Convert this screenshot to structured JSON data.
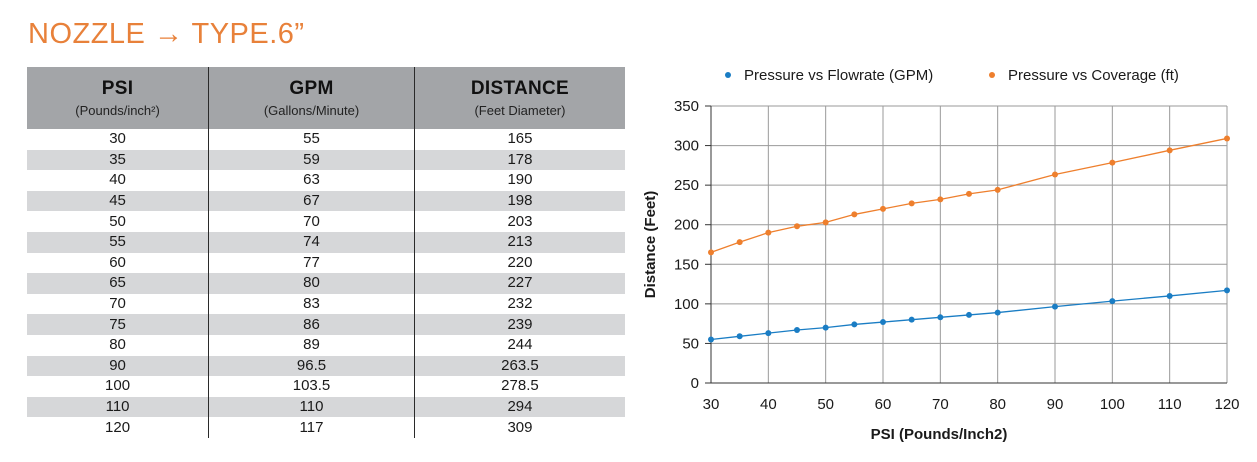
{
  "title": "NOZZLE → TYPE.6”",
  "table": {
    "headers": [
      {
        "main": "PSI",
        "sub": "(Pounds/inch²)"
      },
      {
        "main": "GPM",
        "sub": "(Gallons/Minute)"
      },
      {
        "main": "DISTANCE",
        "sub": "(Feet Diameter)"
      }
    ],
    "rows": [
      [
        "30",
        "55",
        "165"
      ],
      [
        "35",
        "59",
        "178"
      ],
      [
        "40",
        "63",
        "190"
      ],
      [
        "45",
        "67",
        "198"
      ],
      [
        "50",
        "70",
        "203"
      ],
      [
        "55",
        "74",
        "213"
      ],
      [
        "60",
        "77",
        "220"
      ],
      [
        "65",
        "80",
        "227"
      ],
      [
        "70",
        "83",
        "232"
      ],
      [
        "75",
        "86",
        "239"
      ],
      [
        "80",
        "89",
        "244"
      ],
      [
        "90",
        "96.5",
        "263.5"
      ],
      [
        "100",
        "103.5",
        "278.5"
      ],
      [
        "110",
        "110",
        "294"
      ],
      [
        "120",
        "117",
        "309"
      ]
    ]
  },
  "chart_data": {
    "type": "line",
    "x": [
      30,
      35,
      40,
      45,
      50,
      55,
      60,
      65,
      70,
      75,
      80,
      90,
      100,
      110,
      120
    ],
    "series": [
      {
        "name": "Pressure vs Flowrate (GPM)",
        "color": "#1a7dc4",
        "values": [
          55,
          59,
          63,
          67,
          70,
          74,
          77,
          80,
          83,
          86,
          89,
          96.5,
          103.5,
          110,
          117
        ]
      },
      {
        "name": "Pressure vs Coverage (ft)",
        "color": "#ee7f2d",
        "values": [
          165,
          178,
          190,
          198,
          203,
          213,
          220,
          227,
          232,
          239,
          244,
          263.5,
          278.5,
          294,
          309
        ]
      }
    ],
    "xlabel": "PSI (Pounds/Inch2)",
    "ylabel": "Distance (Feet)",
    "xticks": [
      30,
      40,
      50,
      60,
      70,
      80,
      90,
      100,
      110,
      120
    ],
    "yticks": [
      0,
      50,
      100,
      150,
      200,
      250,
      300,
      350
    ],
    "xlim": [
      30,
      120
    ],
    "ylim": [
      0,
      350
    ],
    "grid": true,
    "legend": "top"
  }
}
